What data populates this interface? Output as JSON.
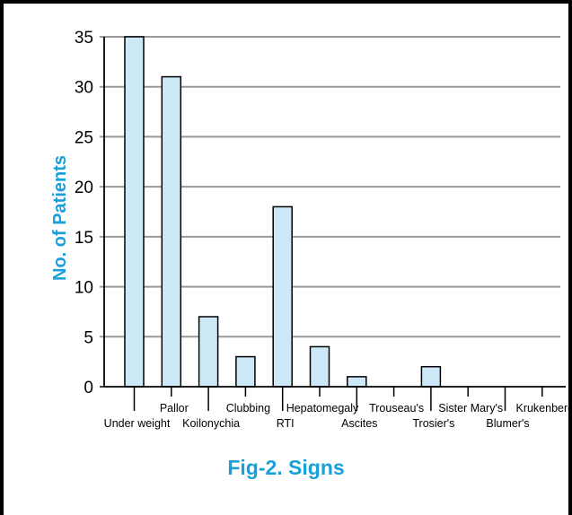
{
  "caption": "Fig-2. Signs",
  "chart_data": {
    "type": "bar",
    "title": "",
    "xlabel": "",
    "ylabel": "No. of Patients",
    "ylim": [
      0,
      35
    ],
    "yticks": [
      0,
      5,
      10,
      15,
      20,
      25,
      30,
      35
    ],
    "grid": true,
    "categories": [
      "Under weight",
      "Pallor",
      "Koilonychia",
      "Clubbing",
      "RTI",
      "Hepatomegaly",
      "Ascites",
      "Trouseau's",
      "Trosier's",
      "Sister Mary's",
      "Blumer's",
      "Krukenberg"
    ],
    "values": [
      35,
      31,
      7,
      3,
      18,
      4,
      1,
      0,
      2,
      0,
      0,
      0
    ],
    "bar_color": "#cde9f7",
    "grid_color": "#999999",
    "label_color": "#1aa0d8"
  }
}
